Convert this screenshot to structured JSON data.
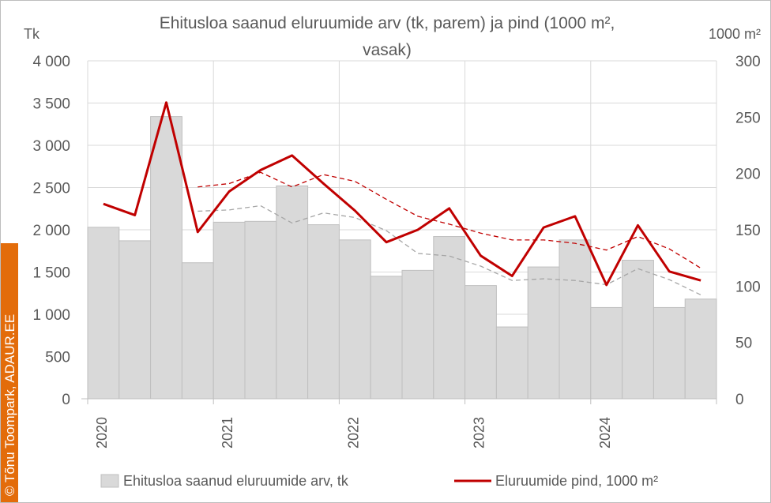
{
  "chart_data": {
    "type": "bar",
    "title_line1": "Ehitusloa saanud eluruumide arv (tk, parem) ja pind (1000 m²,",
    "title_line2": "vasak)",
    "ylabel_left": "Tk",
    "ylabel_right": "1000 m²",
    "ylim_left": [
      0,
      4000
    ],
    "ylim_right": [
      0,
      300
    ],
    "yticks_left": [
      "4 000",
      "3 500",
      "3 000",
      "2 500",
      "2 000",
      "1 500",
      "1 000",
      "500",
      "0"
    ],
    "yticks_right": [
      "300",
      "250",
      "200",
      "150",
      "100",
      "50",
      "0"
    ],
    "x_year_labels": [
      "2020",
      "2021",
      "2022",
      "2023",
      "2024"
    ],
    "grid": true,
    "legend_position": "bottom",
    "colors": {
      "bars": "#d9d9d9",
      "bar_edge": "#bfbfbf",
      "line": "#c00000",
      "trend_dark": "#a6a6a6",
      "grid": "#d9d9d9"
    },
    "series": [
      {
        "name": "Ehitusloa saanud eluruumide arv, tk",
        "kind": "bar",
        "axis": "left",
        "values": [
          2030,
          1870,
          3340,
          1610,
          2090,
          2100,
          2520,
          2060,
          1880,
          1450,
          1520,
          1920,
          1340,
          850,
          1560,
          1880,
          1080,
          1640,
          1080,
          1180
        ]
      },
      {
        "name": "Eluruumide pind, 1000 m²",
        "kind": "line",
        "axis": "right",
        "values": [
          173,
          163,
          263,
          148,
          184,
          203,
          216,
          191,
          167,
          139,
          150,
          169,
          127,
          109,
          152,
          162,
          101,
          154,
          113,
          105
        ]
      },
      {
        "kind": "trend-line",
        "axis": "right",
        "start_index": 3,
        "values": [
          188,
          191,
          201,
          188,
          199,
          193,
          177,
          162,
          155,
          147,
          141,
          141,
          138,
          132,
          144,
          133,
          116
        ]
      },
      {
        "kind": "trend-bar",
        "axis": "left",
        "start_index": 3,
        "values": [
          2220,
          2235,
          2285,
          2080,
          2200,
          2145,
          1990,
          1720,
          1690,
          1570,
          1400,
          1420,
          1400,
          1350,
          1540,
          1410,
          1230
        ]
      }
    ]
  },
  "watermark": "© Tõnu Toompark, ADAUR.EE"
}
